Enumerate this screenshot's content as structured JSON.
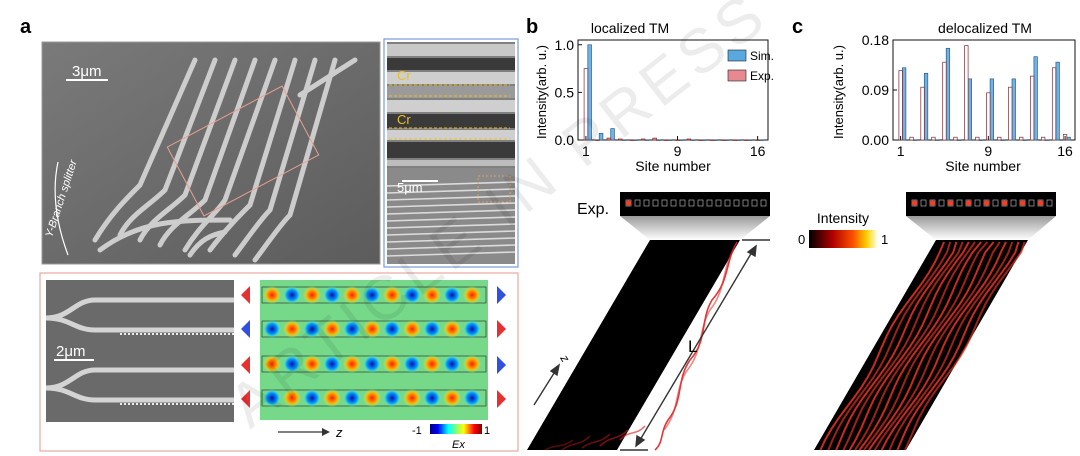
{
  "panels": {
    "a": "a",
    "b": "b",
    "c": "c"
  },
  "panel_a": {
    "sem_main": {
      "scale": "3μm",
      "annotation": "Y-Branch splitter"
    },
    "sem_inset": {
      "label_top": "Cr",
      "label_bottom": "Cr",
      "scale": "5μm"
    },
    "sem_bottom": {
      "scale": "2μm"
    },
    "field_map": {
      "axis": "z",
      "cbar_min": "-1",
      "cbar_max": "1",
      "cbar_label": "Ex"
    }
  },
  "panel_b": {
    "exp_label": "Exp.",
    "length_label": "L",
    "z_label": "z"
  },
  "intensity_colorbar": {
    "title": "Intensity",
    "min": "0",
    "max": "1"
  },
  "watermark": "ARTICLE IN PRESS",
  "chart_data": [
    {
      "type": "bar",
      "title": "localized TM",
      "xlabel": "Site number",
      "ylabel": "Intensity(arb. u.)",
      "ylim": [
        0,
        1.05
      ],
      "yticks": [
        "0.0",
        "0.5",
        "1.0"
      ],
      "xticks": [
        "1",
        "9",
        "16"
      ],
      "legend": [
        "Sim.",
        "Exp."
      ],
      "legend_position": "top-right",
      "categories": [
        "1",
        "2",
        "3",
        "4",
        "5",
        "6",
        "7",
        "8",
        "9",
        "10",
        "11",
        "12",
        "13",
        "14",
        "15",
        "16"
      ],
      "series": [
        {
          "name": "Sim.",
          "values": [
            1.0,
            0.07,
            0.12,
            0.0,
            0.0,
            0.0,
            0.0,
            0.0,
            0.0,
            0.0,
            0.0,
            0.0,
            0.0,
            0.0,
            0.0,
            0.0
          ]
        },
        {
          "name": "Exp.",
          "values": [
            0.75,
            0.0,
            0.02,
            0.01,
            0.0,
            0.01,
            0.02,
            0.0,
            0.0,
            0.01,
            0.0,
            0.0,
            0.0,
            0.0,
            0.0,
            0.0
          ]
        }
      ]
    },
    {
      "type": "bar",
      "title": "delocalized TM",
      "xlabel": "Site number",
      "ylabel": "Intensity(arb. u.)",
      "ylim": [
        0,
        0.18
      ],
      "yticks": [
        "0.00",
        "0.09",
        "0.18"
      ],
      "xticks": [
        "1",
        "9",
        "16"
      ],
      "categories": [
        "1",
        "2",
        "3",
        "4",
        "5",
        "6",
        "7",
        "8",
        "9",
        "10",
        "11",
        "12",
        "13",
        "14",
        "15",
        "16"
      ],
      "series": [
        {
          "name": "Sim.",
          "values": [
            0.13,
            0.0,
            0.12,
            0.0,
            0.165,
            0.0,
            0.11,
            0.0,
            0.11,
            0.0,
            0.11,
            0.0,
            0.15,
            0.0,
            0.14,
            0.005
          ]
        },
        {
          "name": "Exp.",
          "values": [
            0.125,
            0.005,
            0.095,
            0.005,
            0.14,
            0.005,
            0.17,
            0.005,
            0.085,
            0.005,
            0.095,
            0.005,
            0.115,
            0.005,
            0.13,
            0.01
          ]
        }
      ]
    }
  ]
}
